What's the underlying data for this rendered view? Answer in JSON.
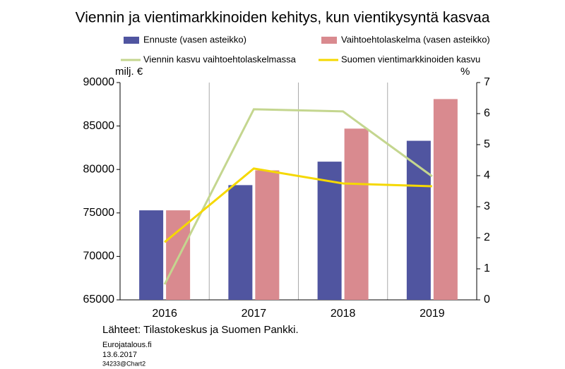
{
  "chart_data": {
    "type": "bar",
    "title": "Viennin ja vientimarkkinoiden kehitys, kun vientikysyntä kasvaa",
    "y_label": "milj. €",
    "y2_label": "%",
    "categories": [
      "2016",
      "2017",
      "2018",
      "2019"
    ],
    "series": [
      {
        "name": "Ennuste (vasen asteikko)",
        "type": "bar",
        "color": "#5055a0",
        "values": [
          75300,
          78200,
          80900,
          83300
        ]
      },
      {
        "name": "Vaihtoehtolaskelma (vasen asteikko)",
        "type": "bar",
        "color": "#d98a8f",
        "values": [
          75300,
          79900,
          84700,
          88100
        ]
      },
      {
        "name": "Viennin kasvu vaihtoehtolaskelmassa",
        "type": "line",
        "axis": "y2",
        "color": "#c4d68f",
        "values": [
          0.5,
          6.14,
          6.07,
          3.98
        ]
      },
      {
        "name": "Suomen vientimarkkinoiden kasvu",
        "type": "line",
        "axis": "y2",
        "color": "#f5d800",
        "values": [
          1.86,
          4.23,
          3.75,
          3.66
        ]
      }
    ],
    "ylim": [
      65000,
      90000
    ],
    "yticks": [
      65000,
      70000,
      75000,
      80000,
      85000,
      90000
    ],
    "y2lim": [
      0,
      7
    ],
    "y2ticks": [
      0,
      1,
      2,
      3,
      4,
      5,
      6,
      7
    ],
    "source": "Lähteet: Tilastokeskus ja Suomen Pankki.",
    "footer": [
      "Eurojatalous.fi",
      "13.6.2017",
      "34233@Chart2"
    ]
  }
}
